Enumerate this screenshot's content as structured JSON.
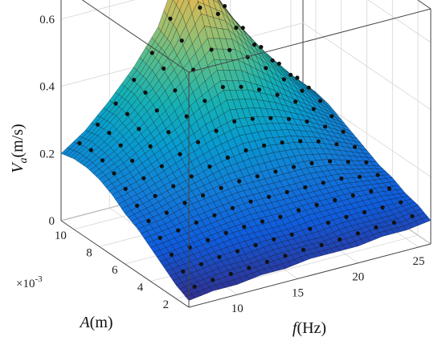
{
  "chart_data": {
    "type": "surface",
    "title": "",
    "xlabel": {
      "italic": "f",
      "rest": "(Hz)"
    },
    "ylabel": {
      "italic": "A",
      "rest": "(m)"
    },
    "zlabel": {
      "italic": "V",
      "sub": "a",
      "rest": "(m/s)"
    },
    "y_multiplier": "×10",
    "y_multiplier_exp": "-3",
    "xlim": [
      6,
      26
    ],
    "ylim": [
      1,
      11
    ],
    "zlim": [
      0,
      0.7
    ],
    "x_ticks": [
      "10",
      "15",
      "20",
      "25"
    ],
    "y_ticks": [
      "2",
      "4",
      "6",
      "8",
      "10"
    ],
    "z_ticks": [
      "0",
      "0.2",
      "0.4",
      "0.6"
    ],
    "grid": true,
    "colormap": "parula",
    "x_samples": [
      6,
      8,
      10,
      12,
      14,
      16,
      18,
      20,
      22,
      24,
      26
    ],
    "y_samples": [
      1,
      2,
      3,
      4,
      5,
      6,
      7,
      8,
      9,
      10,
      11
    ],
    "z_values": [
      [
        0.02,
        0.03,
        0.03,
        0.04,
        0.04,
        0.05,
        0.05,
        0.05,
        0.06,
        0.06,
        0.07
      ],
      [
        0.04,
        0.05,
        0.06,
        0.06,
        0.07,
        0.07,
        0.07,
        0.08,
        0.08,
        0.08,
        0.09
      ],
      [
        0.07,
        0.08,
        0.09,
        0.1,
        0.1,
        0.1,
        0.11,
        0.11,
        0.11,
        0.11,
        0.1
      ],
      [
        0.1,
        0.11,
        0.12,
        0.13,
        0.14,
        0.14,
        0.14,
        0.14,
        0.14,
        0.13,
        0.12
      ],
      [
        0.13,
        0.14,
        0.16,
        0.17,
        0.18,
        0.18,
        0.18,
        0.18,
        0.17,
        0.15,
        0.13
      ],
      [
        0.15,
        0.17,
        0.19,
        0.21,
        0.23,
        0.24,
        0.24,
        0.23,
        0.21,
        0.18,
        0.15
      ],
      [
        0.18,
        0.2,
        0.23,
        0.26,
        0.29,
        0.31,
        0.3,
        0.28,
        0.25,
        0.21,
        0.17
      ],
      [
        0.2,
        0.23,
        0.27,
        0.31,
        0.36,
        0.4,
        0.38,
        0.34,
        0.29,
        0.24,
        0.19
      ],
      [
        0.21,
        0.25,
        0.3,
        0.36,
        0.43,
        0.5,
        0.48,
        0.41,
        0.34,
        0.27,
        0.21
      ],
      [
        0.21,
        0.26,
        0.32,
        0.39,
        0.48,
        0.62,
        0.56,
        0.46,
        0.37,
        0.29,
        0.22
      ],
      [
        0.2,
        0.25,
        0.32,
        0.4,
        0.5,
        0.68,
        0.6,
        0.48,
        0.38,
        0.29,
        0.22
      ]
    ]
  }
}
